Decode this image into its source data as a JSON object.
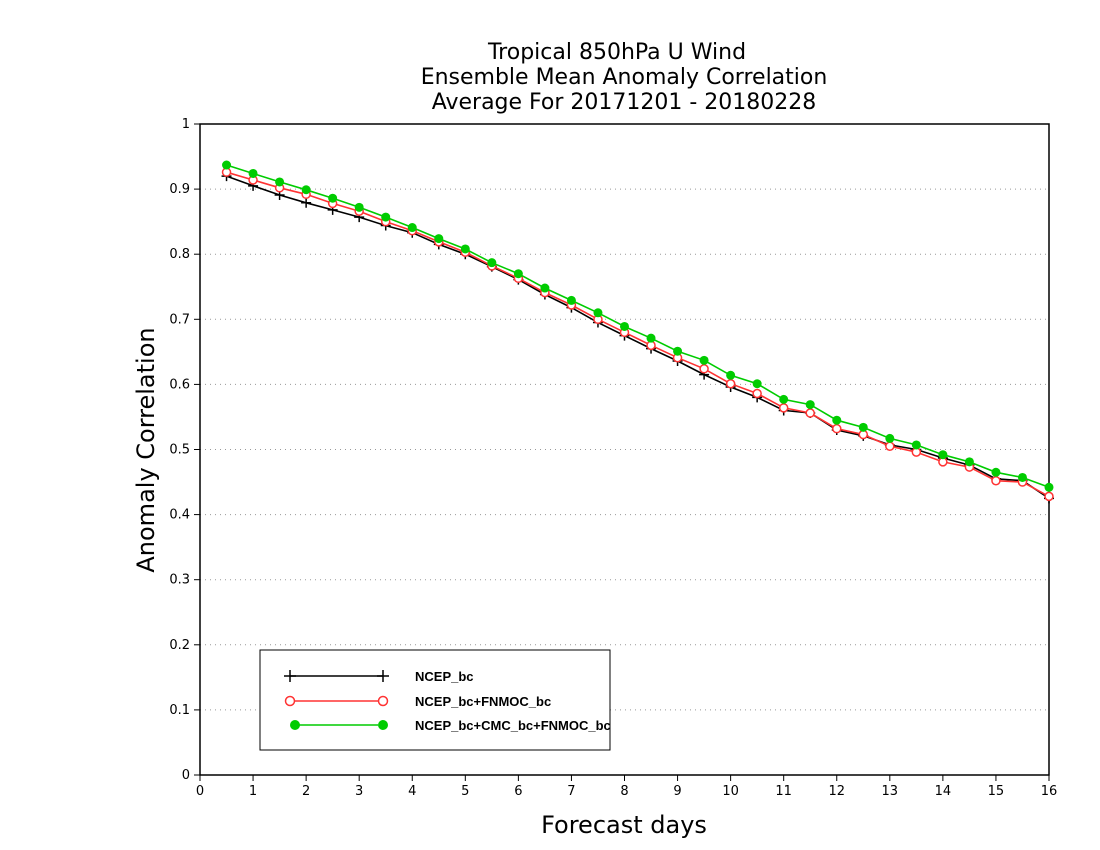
{
  "chart_data": {
    "type": "line",
    "title_lines": [
      "Tropical 850hPa U Wind",
      "Ensemble Mean Anomaly Correlation",
      "Average For 20171201 - 20180228"
    ],
    "xlabel": "Forecast days",
    "ylabel": "Anomaly Correlation",
    "xlim": [
      0,
      16
    ],
    "ylim": [
      0,
      1
    ],
    "xticks": [
      "0",
      "1",
      "2",
      "3",
      "4",
      "5",
      "6",
      "7",
      "8",
      "9",
      "10",
      "11",
      "12",
      "13",
      "14",
      "15",
      "16"
    ],
    "yticks": [
      "0",
      "0.1",
      "0.2",
      "0.3",
      "0.4",
      "0.5",
      "0.6",
      "0.7",
      "0.8",
      "0.9",
      "1"
    ],
    "grid": true,
    "legend_position": "bottom-left",
    "x": [
      0.5,
      1,
      1.5,
      2,
      2.5,
      3,
      3.5,
      4,
      4.5,
      5,
      5.5,
      6,
      6.5,
      7,
      7.5,
      8,
      8.5,
      9,
      9.5,
      10,
      10.5,
      11,
      11.5,
      12,
      12.5,
      13,
      13.5,
      14,
      14.5,
      15,
      15.5,
      16
    ],
    "series": [
      {
        "name": "NCEP_bc",
        "color": "#000000",
        "marker": "plus",
        "values": [
          0.92,
          0.905,
          0.891,
          0.879,
          0.868,
          0.857,
          0.844,
          0.833,
          0.815,
          0.8,
          0.781,
          0.761,
          0.738,
          0.718,
          0.695,
          0.675,
          0.655,
          0.636,
          0.615,
          0.596,
          0.58,
          0.56,
          0.556,
          0.53,
          0.521,
          0.507,
          0.5,
          0.487,
          0.476,
          0.455,
          0.452,
          0.425
        ]
      },
      {
        "name": "NCEP_bc+FNMOC_bc",
        "color": "#ff3333",
        "marker": "open-circle",
        "values": [
          0.926,
          0.914,
          0.902,
          0.892,
          0.878,
          0.866,
          0.85,
          0.836,
          0.819,
          0.803,
          0.782,
          0.763,
          0.741,
          0.722,
          0.7,
          0.68,
          0.66,
          0.641,
          0.624,
          0.601,
          0.586,
          0.564,
          0.556,
          0.532,
          0.523,
          0.505,
          0.496,
          0.481,
          0.473,
          0.452,
          0.45,
          0.428
        ]
      },
      {
        "name": "NCEP_bc+CMC_bc+FNMOC_bc",
        "color": "#00cc00",
        "marker": "filled-circle",
        "values": [
          0.937,
          0.924,
          0.911,
          0.899,
          0.886,
          0.872,
          0.857,
          0.841,
          0.824,
          0.808,
          0.787,
          0.77,
          0.748,
          0.729,
          0.71,
          0.689,
          0.671,
          0.651,
          0.637,
          0.614,
          0.601,
          0.577,
          0.569,
          0.545,
          0.534,
          0.517,
          0.507,
          0.492,
          0.481,
          0.465,
          0.457,
          0.442
        ]
      }
    ]
  }
}
